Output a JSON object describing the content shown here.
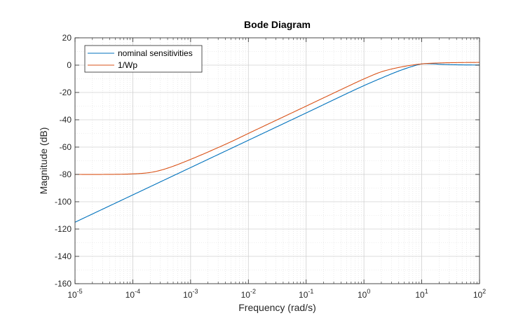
{
  "chart_data": {
    "type": "line",
    "title": "Bode Diagram",
    "xlabel": "Frequency  (rad/s)",
    "ylabel": "Magnitude (dB)",
    "x_scale": "log",
    "xlim": [
      1e-05,
      100
    ],
    "ylim": [
      -160,
      20
    ],
    "x_ticks": [
      {
        "base": "10",
        "exp": "-5",
        "value": 1e-05
      },
      {
        "base": "10",
        "exp": "-4",
        "value": 0.0001
      },
      {
        "base": "10",
        "exp": "-3",
        "value": 0.001
      },
      {
        "base": "10",
        "exp": "-2",
        "value": 0.01
      },
      {
        "base": "10",
        "exp": "-1",
        "value": 0.1
      },
      {
        "base": "10",
        "exp": "0",
        "value": 1
      },
      {
        "base": "10",
        "exp": "1",
        "value": 10
      },
      {
        "base": "10",
        "exp": "2",
        "value": 100
      }
    ],
    "y_ticks": [
      20,
      0,
      -20,
      -40,
      -60,
      -80,
      -100,
      -120,
      -140,
      -160
    ],
    "grid": true,
    "minor_grid": true,
    "legend_position": "top-left",
    "series": [
      {
        "name": "nominal sensitivities",
        "color": "#0072bd",
        "x": [
          1e-05,
          0.0001,
          0.001,
          0.01,
          0.1,
          1,
          2,
          4,
          7,
          10,
          15,
          20,
          30,
          50,
          100
        ],
        "y": [
          -115,
          -95,
          -75,
          -55,
          -35,
          -15,
          -9.5,
          -4.3,
          -0.8,
          0.9,
          1.0,
          0.7,
          0.4,
          0.2,
          0.1
        ]
      },
      {
        "name": "1/Wp",
        "color": "#d95319",
        "x": [
          1e-05,
          3e-05,
          0.0001,
          0.0002,
          0.0003,
          0.0005,
          0.001,
          0.002,
          0.005,
          0.01,
          0.1,
          0.5,
          1,
          2,
          5,
          10,
          20,
          50,
          100
        ],
        "y": [
          -80,
          -80,
          -79.6,
          -78.6,
          -77,
          -74,
          -69,
          -63.6,
          -56.1,
          -50,
          -30,
          -16,
          -10.1,
          -4.9,
          -0.9,
          0.9,
          1.6,
          1.9,
          2
        ]
      }
    ]
  }
}
